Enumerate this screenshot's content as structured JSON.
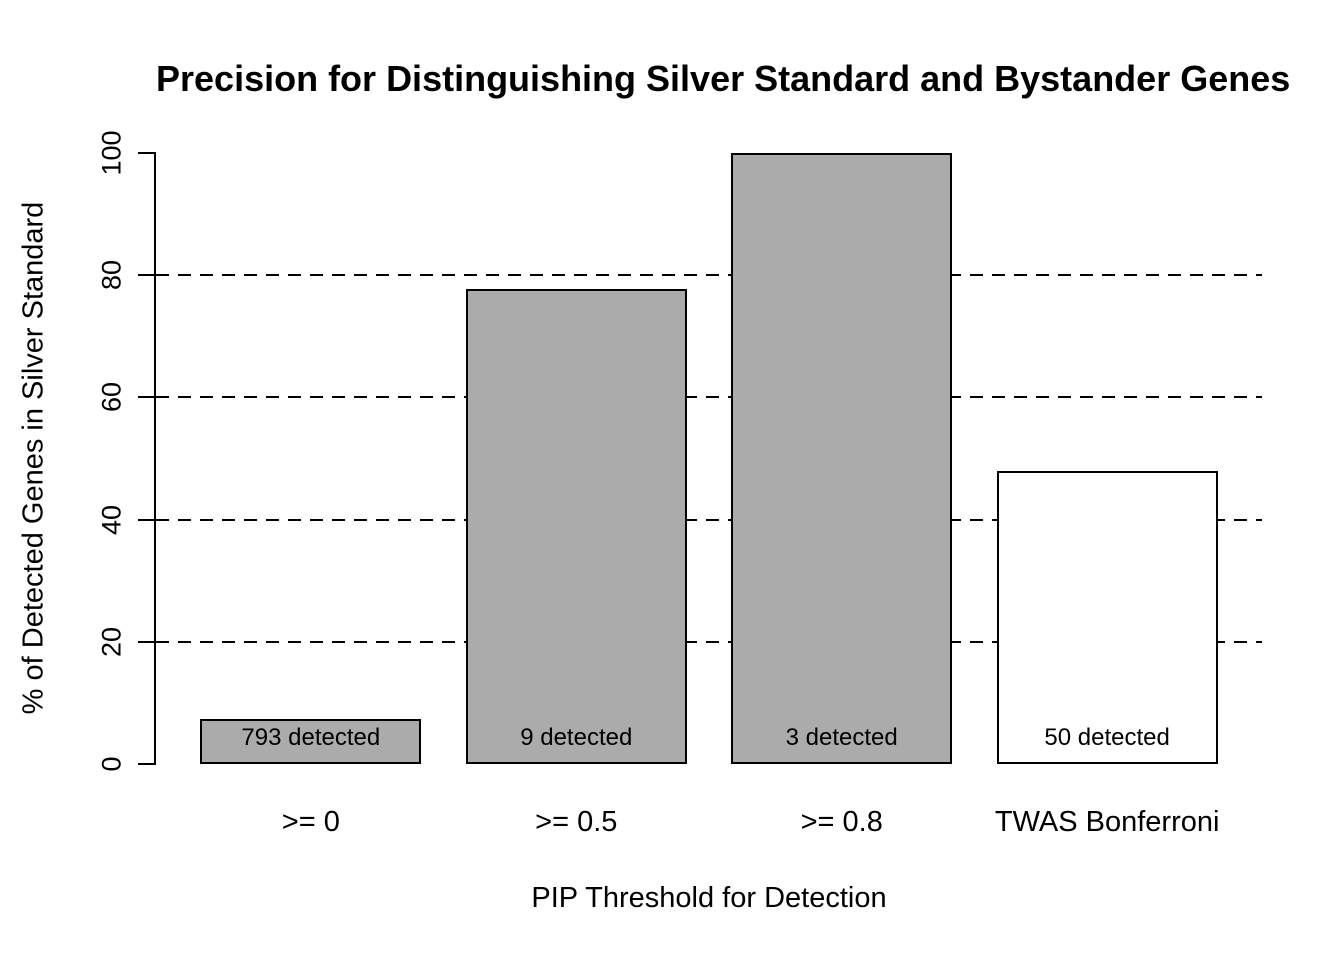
{
  "chart_data": {
    "type": "bar",
    "title": "Precision for Distinguishing Silver Standard and Bystander Genes",
    "xlabel": "PIP Threshold for Detection",
    "ylabel": "% of Detected Genes in Silver Standard",
    "categories": [
      ">= 0",
      ">= 0.5",
      ">= 0.8",
      "TWAS Bonferroni"
    ],
    "values": [
      7.4,
      77.8,
      100,
      48
    ],
    "bar_labels": [
      "793 detected",
      "9 detected",
      "3 detected",
      "50 detected"
    ],
    "bar_colors": [
      "#ababab",
      "#ababab",
      "#ababab",
      "#ffffff"
    ],
    "bar_border_color": "#000000",
    "ylim": [
      0,
      100
    ],
    "yticks": [
      0,
      20,
      40,
      60,
      80,
      100
    ],
    "gridlines": [
      20,
      40,
      60,
      80
    ],
    "gridline_style": "dashed",
    "grid": "horizontal-dashed",
    "legend": "none",
    "background_color": "#ffffff",
    "bar_group_spacing_ratio": 0.2
  }
}
